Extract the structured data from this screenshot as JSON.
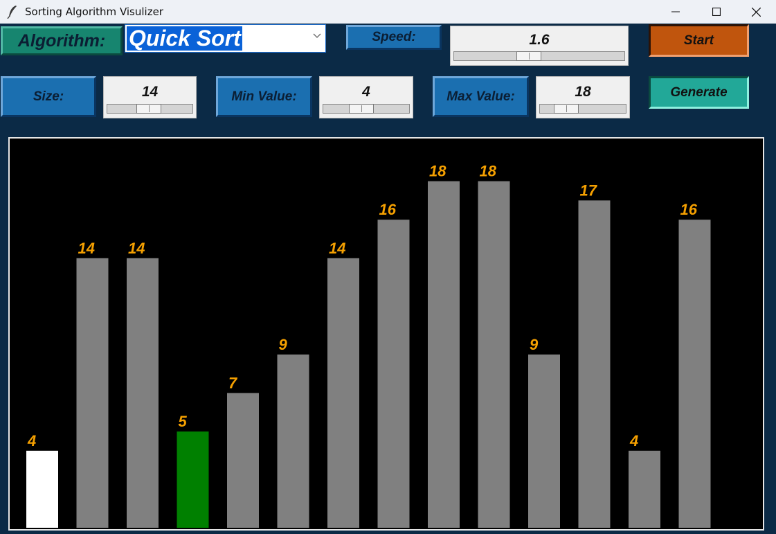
{
  "window": {
    "title": "Sorting Algorithm Visulizer"
  },
  "controls": {
    "algorithm_label": "Algorithm:",
    "algorithm_value": "Quick Sort",
    "speed_label": "Speed:",
    "speed_value": "1.6",
    "speed_level": 0.43,
    "start_label": "Start",
    "size_label": "Size:",
    "size_value": "14",
    "size_level": 0.48,
    "min_label": "Min Value:",
    "min_value": "4",
    "min_level": 0.42,
    "max_label": "Max Value:",
    "max_value": "18",
    "max_level": 0.23,
    "generate_label": "Generate"
  },
  "chart_data": {
    "type": "bar",
    "values": [
      4,
      14,
      14,
      5,
      7,
      9,
      14,
      16,
      18,
      18,
      9,
      17,
      4,
      16
    ],
    "labels": [
      "4",
      "14",
      "14",
      "5",
      "7",
      "9",
      "14",
      "16",
      "18",
      "18",
      "9",
      "17",
      "4",
      "16"
    ],
    "bar_colors": [
      "#ffffff",
      "#808080",
      "#808080",
      "#008000",
      "#808080",
      "#808080",
      "#808080",
      "#808080",
      "#808080",
      "#808080",
      "#808080",
      "#808080",
      "#808080",
      "#808080"
    ],
    "label_color": "#f5a000",
    "background": "#000000"
  }
}
